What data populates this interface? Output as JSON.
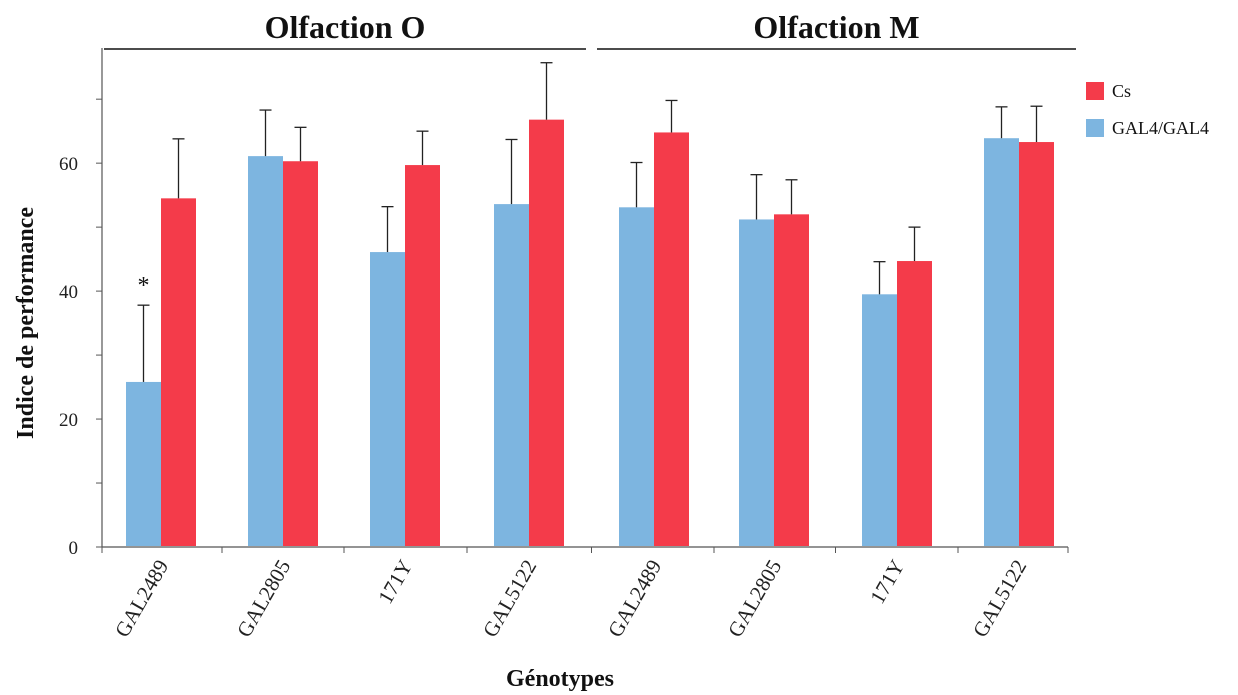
{
  "chart_data": {
    "type": "bar",
    "xlabel": "Génotypes",
    "ylabel": "Indice de performance",
    "ylim": [
      0,
      78
    ],
    "yticks": [
      0,
      20,
      40,
      60
    ],
    "grid": false,
    "legend_position": "top-right",
    "groups": [
      {
        "label": "Olfaction O",
        "categories": [
          0,
          1,
          2,
          3
        ]
      },
      {
        "label": "Olfaction M",
        "categories": [
          4,
          5,
          6,
          7
        ]
      }
    ],
    "categories": [
      "GAL2489",
      "GAL2805",
      "171Y",
      "GAL5122",
      "GAL2489",
      "GAL2805",
      "171Y",
      "GAL5122"
    ],
    "series": [
      {
        "name": "Cs",
        "color": "#f43b4a",
        "values": [
          54.5,
          60.3,
          59.7,
          66.8,
          64.8,
          52.0,
          44.7,
          63.3
        ],
        "errors": [
          9.3,
          5.3,
          5.3,
          8.9,
          5.0,
          5.4,
          5.3,
          5.6
        ]
      },
      {
        "name": "GAL4/GAL4",
        "color": "#7db5e0",
        "values": [
          25.8,
          61.1,
          46.1,
          53.6,
          53.1,
          51.2,
          39.5,
          63.9
        ],
        "errors": [
          12.0,
          7.2,
          7.1,
          10.1,
          7.0,
          7.0,
          5.1,
          4.9
        ]
      }
    ],
    "annotations": [
      {
        "text": "*",
        "category": 0,
        "series": "GAL4/GAL4"
      }
    ]
  }
}
